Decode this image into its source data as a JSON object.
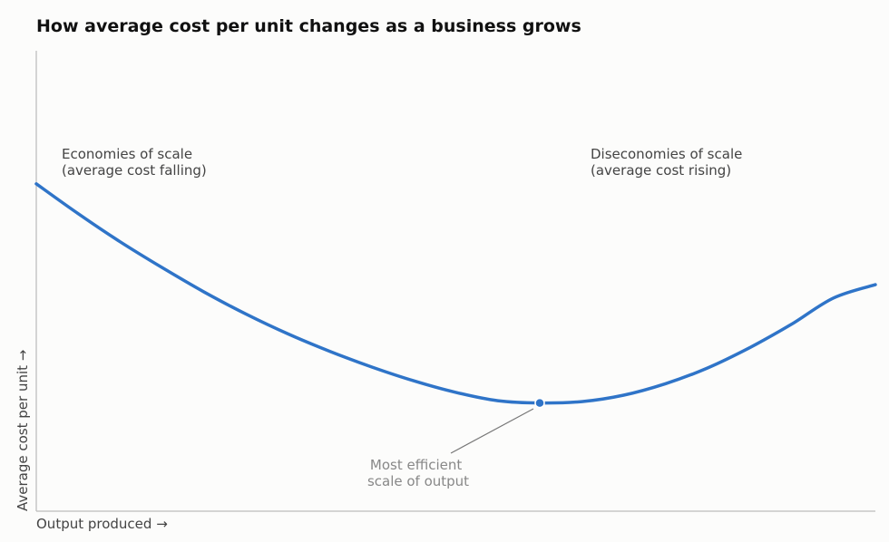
{
  "chart_data": {
    "type": "line",
    "title": "How average cost per unit changes as a business grows",
    "xlabel": "Output produced  →",
    "ylabel": "Average cost per unit  →",
    "xlim": [
      0,
      100
    ],
    "ylim": [
      0,
      100
    ],
    "grid": false,
    "series": [
      {
        "color": "#2f74c8",
        "x": [
          0,
          5,
          10,
          15,
          20,
          25,
          30,
          35,
          40,
          45,
          50,
          55,
          60,
          65,
          70,
          75,
          80,
          85,
          90,
          95,
          100
        ],
        "y": [
          71.1,
          64.6,
          58.5,
          52.9,
          47.6,
          42.8,
          38.5,
          34.7,
          31.3,
          28.3,
          25.8,
          24.0,
          23.5,
          23.8,
          25.2,
          27.7,
          31.1,
          35.5,
          40.6,
          46.3,
          49.2
        ]
      }
    ],
    "min_point": {
      "x": 60,
      "y": 23.5
    },
    "annotations": [
      {
        "id": "economies",
        "lines": [
          "Economies of scale",
          "(average cost falling)"
        ]
      },
      {
        "id": "diseconomies",
        "lines": [
          "Diseconomies of scale",
          "(average cost rising)"
        ]
      },
      {
        "id": "efficient",
        "lines": [
          "Most efficient",
          "scale of output"
        ]
      }
    ],
    "colors": {
      "curve": "#2f74c8",
      "axis": "#bbbbbb",
      "label": "#444444",
      "annotation_muted": "#888888"
    }
  }
}
